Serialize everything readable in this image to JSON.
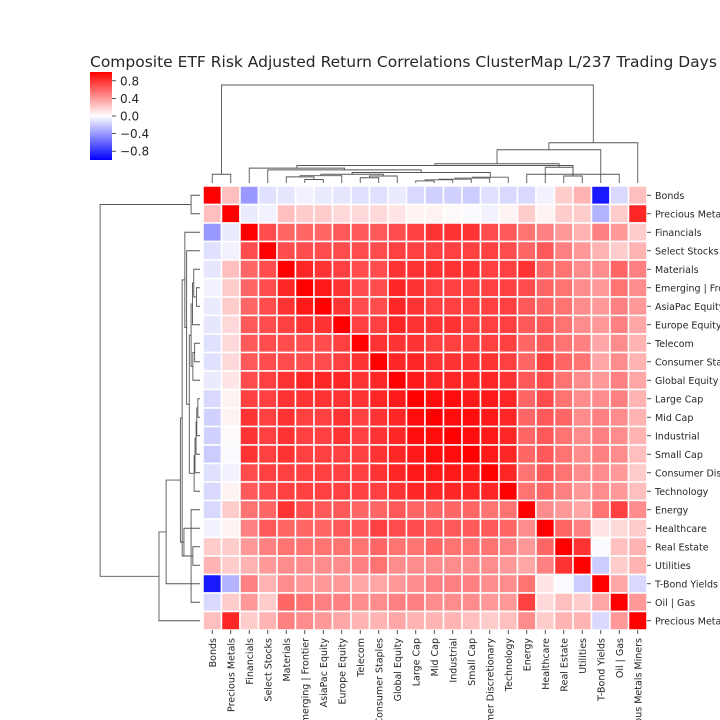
{
  "chart_data": {
    "type": "heatmap",
    "title": "Composite ETF Risk Adjusted Return Correlations ClusterMap L/237 Trading Days",
    "labels": [
      "Bonds",
      "Precious Metals",
      "Financials",
      "Select Stocks",
      "Materials",
      "Emerging | Frontier",
      "AsiaPac Equity",
      "Europe Equity",
      "Telecom",
      "Consumer Staples",
      "Global Equity",
      "Large Cap",
      "Mid Cap",
      "Industrial",
      "Small Cap",
      "Consumer Discretionary",
      "Technology",
      "Energy",
      "Healthcare",
      "Real Estate",
      "Utilities",
      "T-Bond Yields",
      "Oil | Gas",
      "Precious Metals Miners"
    ],
    "values": [
      [
        1.0,
        0.25,
        -0.4,
        -0.12,
        -0.1,
        -0.05,
        -0.08,
        -0.1,
        -0.12,
        -0.12,
        -0.08,
        -0.15,
        -0.18,
        -0.18,
        -0.2,
        -0.12,
        -0.15,
        -0.15,
        -0.05,
        0.2,
        0.3,
        -0.9,
        -0.15,
        0.25
      ],
      [
        0.25,
        1.0,
        -0.08,
        -0.05,
        0.25,
        0.2,
        0.2,
        0.15,
        0.15,
        0.15,
        0.1,
        0.05,
        0.05,
        0.02,
        -0.02,
        -0.05,
        0.05,
        0.2,
        0.05,
        0.2,
        0.2,
        -0.3,
        0.2,
        0.85
      ],
      [
        -0.4,
        -0.08,
        1.0,
        0.7,
        0.6,
        0.6,
        0.6,
        0.65,
        0.65,
        0.65,
        0.7,
        0.75,
        0.8,
        0.8,
        0.8,
        0.7,
        0.65,
        0.55,
        0.5,
        0.4,
        0.3,
        0.5,
        0.4,
        0.2
      ],
      [
        -0.12,
        -0.05,
        0.7,
        1.0,
        0.7,
        0.7,
        0.7,
        0.7,
        0.7,
        0.7,
        0.75,
        0.75,
        0.75,
        0.75,
        0.75,
        0.75,
        0.7,
        0.6,
        0.65,
        0.5,
        0.4,
        0.3,
        0.2,
        0.3
      ],
      [
        -0.1,
        0.25,
        0.6,
        0.7,
        1.0,
        0.85,
        0.8,
        0.75,
        0.7,
        0.7,
        0.8,
        0.8,
        0.8,
        0.8,
        0.8,
        0.75,
        0.75,
        0.8,
        0.6,
        0.55,
        0.45,
        0.45,
        0.6,
        0.5
      ],
      [
        -0.05,
        0.2,
        0.6,
        0.7,
        0.85,
        1.0,
        0.9,
        0.8,
        0.7,
        0.7,
        0.85,
        0.8,
        0.75,
        0.75,
        0.75,
        0.75,
        0.75,
        0.7,
        0.6,
        0.55,
        0.45,
        0.4,
        0.55,
        0.45
      ],
      [
        -0.08,
        0.2,
        0.6,
        0.7,
        0.8,
        0.9,
        1.0,
        0.8,
        0.7,
        0.7,
        0.85,
        0.8,
        0.75,
        0.75,
        0.75,
        0.75,
        0.75,
        0.65,
        0.6,
        0.55,
        0.45,
        0.4,
        0.5,
        0.4
      ],
      [
        -0.1,
        0.15,
        0.65,
        0.7,
        0.75,
        0.8,
        0.8,
        1.0,
        0.75,
        0.75,
        0.85,
        0.8,
        0.8,
        0.8,
        0.75,
        0.75,
        0.75,
        0.65,
        0.65,
        0.55,
        0.45,
        0.4,
        0.5,
        0.35
      ],
      [
        -0.12,
        0.15,
        0.65,
        0.7,
        0.7,
        0.7,
        0.7,
        0.75,
        1.0,
        0.8,
        0.8,
        0.8,
        0.75,
        0.75,
        0.75,
        0.75,
        0.75,
        0.6,
        0.65,
        0.55,
        0.5,
        0.35,
        0.45,
        0.3
      ],
      [
        -0.12,
        0.15,
        0.65,
        0.7,
        0.7,
        0.7,
        0.7,
        0.75,
        0.8,
        1.0,
        0.85,
        0.85,
        0.8,
        0.8,
        0.8,
        0.8,
        0.75,
        0.6,
        0.75,
        0.6,
        0.55,
        0.35,
        0.45,
        0.3
      ],
      [
        -0.08,
        0.1,
        0.7,
        0.75,
        0.8,
        0.85,
        0.85,
        0.85,
        0.8,
        0.85,
        1.0,
        0.9,
        0.85,
        0.85,
        0.85,
        0.85,
        0.8,
        0.65,
        0.7,
        0.55,
        0.45,
        0.4,
        0.5,
        0.35
      ],
      [
        -0.15,
        0.05,
        0.75,
        0.75,
        0.8,
        0.8,
        0.8,
        0.8,
        0.8,
        0.85,
        0.9,
        1.0,
        0.95,
        0.95,
        0.9,
        0.9,
        0.85,
        0.6,
        0.7,
        0.55,
        0.45,
        0.45,
        0.5,
        0.3
      ],
      [
        -0.18,
        0.05,
        0.8,
        0.75,
        0.8,
        0.75,
        0.75,
        0.8,
        0.75,
        0.8,
        0.85,
        0.95,
        1.0,
        0.95,
        0.95,
        0.9,
        0.85,
        0.6,
        0.65,
        0.6,
        0.45,
        0.5,
        0.45,
        0.3
      ],
      [
        -0.18,
        0.02,
        0.8,
        0.75,
        0.8,
        0.75,
        0.75,
        0.8,
        0.75,
        0.8,
        0.85,
        0.95,
        0.95,
        1.0,
        0.95,
        0.9,
        0.85,
        0.6,
        0.65,
        0.55,
        0.45,
        0.5,
        0.45,
        0.3
      ],
      [
        -0.2,
        -0.02,
        0.8,
        0.75,
        0.8,
        0.75,
        0.75,
        0.75,
        0.75,
        0.8,
        0.85,
        0.9,
        0.95,
        0.95,
        1.0,
        0.9,
        0.85,
        0.6,
        0.65,
        0.55,
        0.45,
        0.5,
        0.45,
        0.25
      ],
      [
        -0.12,
        -0.05,
        0.7,
        0.75,
        0.75,
        0.75,
        0.75,
        0.75,
        0.75,
        0.8,
        0.85,
        0.9,
        0.9,
        0.9,
        0.9,
        1.0,
        0.85,
        0.55,
        0.65,
        0.55,
        0.45,
        0.45,
        0.4,
        0.2
      ],
      [
        -0.15,
        0.05,
        0.65,
        0.7,
        0.75,
        0.75,
        0.75,
        0.75,
        0.75,
        0.75,
        0.8,
        0.85,
        0.85,
        0.85,
        0.85,
        0.85,
        1.0,
        0.55,
        0.6,
        0.5,
        0.4,
        0.45,
        0.4,
        0.25
      ],
      [
        -0.15,
        0.2,
        0.55,
        0.6,
        0.8,
        0.7,
        0.65,
        0.65,
        0.6,
        0.6,
        0.65,
        0.6,
        0.6,
        0.6,
        0.6,
        0.55,
        0.55,
        1.0,
        0.45,
        0.4,
        0.35,
        0.55,
        0.75,
        0.45
      ],
      [
        -0.05,
        0.05,
        0.5,
        0.65,
        0.6,
        0.6,
        0.6,
        0.65,
        0.65,
        0.75,
        0.7,
        0.7,
        0.65,
        0.65,
        0.65,
        0.65,
        0.6,
        0.45,
        1.0,
        0.6,
        0.5,
        0.1,
        0.15,
        0.2
      ],
      [
        0.2,
        0.2,
        0.4,
        0.5,
        0.55,
        0.55,
        0.55,
        0.55,
        0.55,
        0.6,
        0.55,
        0.55,
        0.6,
        0.55,
        0.55,
        0.55,
        0.5,
        0.4,
        0.6,
        1.0,
        0.8,
        -0.02,
        0.25,
        0.3
      ],
      [
        0.3,
        0.2,
        0.3,
        0.4,
        0.45,
        0.45,
        0.45,
        0.45,
        0.5,
        0.55,
        0.45,
        0.45,
        0.45,
        0.45,
        0.45,
        0.45,
        0.4,
        0.35,
        0.5,
        0.8,
        1.0,
        -0.2,
        0.2,
        0.3
      ],
      [
        -0.9,
        -0.3,
        0.5,
        0.3,
        0.45,
        0.4,
        0.4,
        0.4,
        0.35,
        0.35,
        0.4,
        0.45,
        0.5,
        0.5,
        0.5,
        0.45,
        0.45,
        0.55,
        0.1,
        -0.02,
        -0.2,
        1.0,
        0.35,
        -0.15
      ],
      [
        -0.15,
        0.2,
        0.4,
        0.2,
        0.6,
        0.55,
        0.5,
        0.5,
        0.45,
        0.45,
        0.5,
        0.5,
        0.45,
        0.45,
        0.45,
        0.4,
        0.4,
        0.75,
        0.15,
        0.25,
        0.2,
        0.35,
        1.0,
        0.4
      ],
      [
        0.25,
        0.85,
        0.2,
        0.3,
        0.5,
        0.45,
        0.4,
        0.35,
        0.3,
        0.3,
        0.35,
        0.3,
        0.3,
        0.3,
        0.25,
        0.2,
        0.25,
        0.45,
        0.2,
        0.3,
        0.3,
        -0.15,
        0.4,
        1.0
      ]
    ],
    "colorbar": {
      "ticks": [
        0.8,
        0.4,
        0.0,
        -0.4,
        -0.8
      ],
      "tick_labels": [
        "0.8",
        "0.4",
        "0.0",
        "−0.4",
        "−0.8"
      ],
      "vmin": -1.0,
      "vmax": 1.0,
      "colors": [
        "#0000ff",
        "#ffffff",
        "#ff0000"
      ]
    },
    "dendrogram": {
      "merges": [
        [
          11,
          12,
          0.12
        ],
        [
          24,
          13,
          0.18
        ],
        [
          25,
          14,
          0.22
        ],
        [
          26,
          15,
          0.28
        ],
        [
          27,
          16,
          0.33
        ],
        [
          5,
          6,
          0.2
        ],
        [
          29,
          4,
          0.35
        ],
        [
          30,
          7,
          0.42
        ],
        [
          8,
          9,
          0.3
        ],
        [
          32,
          10,
          0.4
        ],
        [
          31,
          33,
          0.5
        ],
        [
          34,
          28,
          0.6
        ],
        [
          35,
          3,
          0.75
        ],
        [
          36,
          2,
          0.85
        ],
        [
          19,
          20,
          0.4
        ],
        [
          18,
          38,
          0.9
        ],
        [
          17,
          22,
          0.5
        ],
        [
          37,
          40,
          1.0
        ],
        [
          41,
          39,
          1.1
        ],
        [
          42,
          21,
          1.9
        ],
        [
          0,
          1,
          0.5
        ],
        [
          23,
          43,
          2.3
        ],
        [
          44,
          45,
          5.6
        ]
      ],
      "max_height": 6.0
    }
  }
}
